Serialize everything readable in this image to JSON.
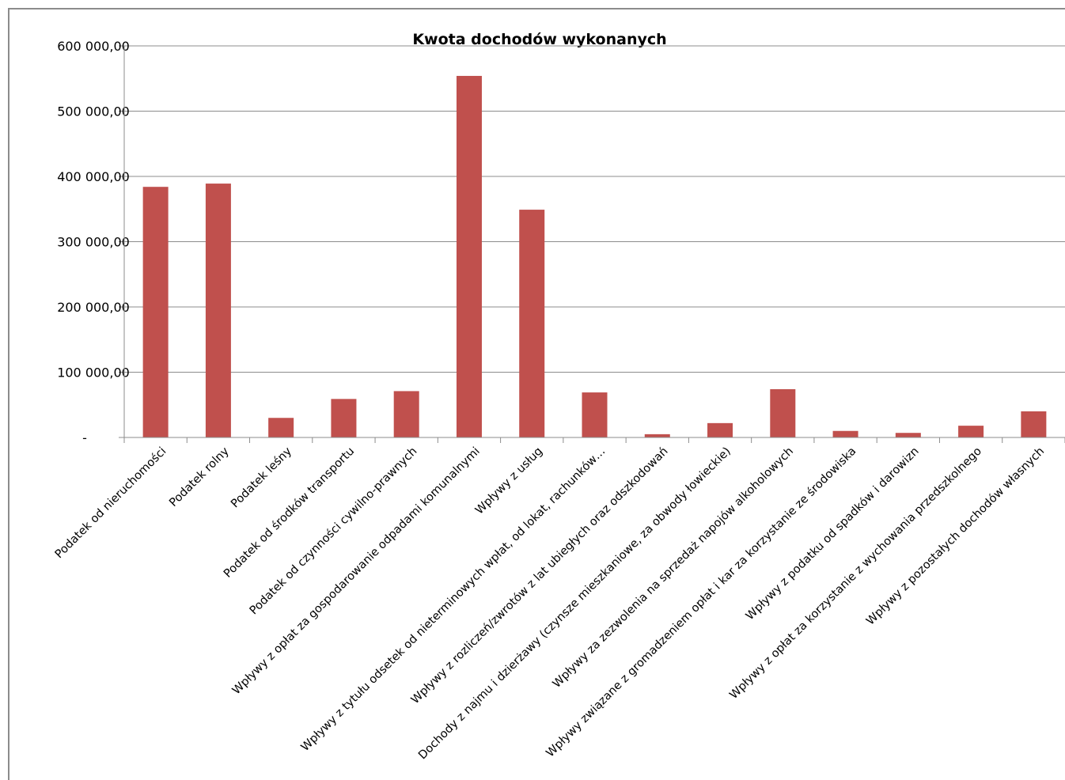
{
  "chart_data": {
    "type": "bar",
    "title": "Kwota dochodów wykonanych",
    "xlabel": "",
    "ylabel": "",
    "ylim": [
      0,
      600000
    ],
    "y_ticks": [
      0,
      100000,
      200000,
      300000,
      400000,
      500000,
      600000
    ],
    "y_tick_labels": [
      "-",
      "100 000,00",
      "200 000,00",
      "300 000,00",
      "400 000,00",
      "500 000,00",
      "600 000,00"
    ],
    "grid": true,
    "legend": "none",
    "bar_color": "#c0504d",
    "categories": [
      "Podatek od nieruchomości",
      "Podatek rolny",
      "Podatek leśny",
      "Podatek od środków transportu",
      "Podatek od czynności cywilno-prawnych",
      "Wpływy z opłat za gospodarowanie odpadami komunalnymi",
      "Wpływy z usług",
      "Wpływy z tytułu odsetek od nieterminowych wpłat, od lokat, rachunków…",
      "Wpływy z rozliczeń/zwrotów z lat ubiegłych oraz odszkodowań",
      "Dochody z najmu i dzierżawy (czynsze mieszkaniowe, za obwody łowieckie)",
      "Wpływy za zezwolenia na sprzedaż napojów alkoholowych",
      "Wpływy związane z gromadzeniem opłat i kar za korzystanie ze środowiska",
      "Wpływy z podatku od spadków i darowizn",
      "Wpływy z opłat za korzystanie z wychowania przedszkolnego",
      "Wpływy z pozostałych dochodów własnych"
    ],
    "values": [
      384000,
      389000,
      30000,
      59000,
      71000,
      554000,
      349000,
      69000,
      5000,
      22000,
      74000,
      10000,
      7000,
      18000,
      40000
    ]
  }
}
